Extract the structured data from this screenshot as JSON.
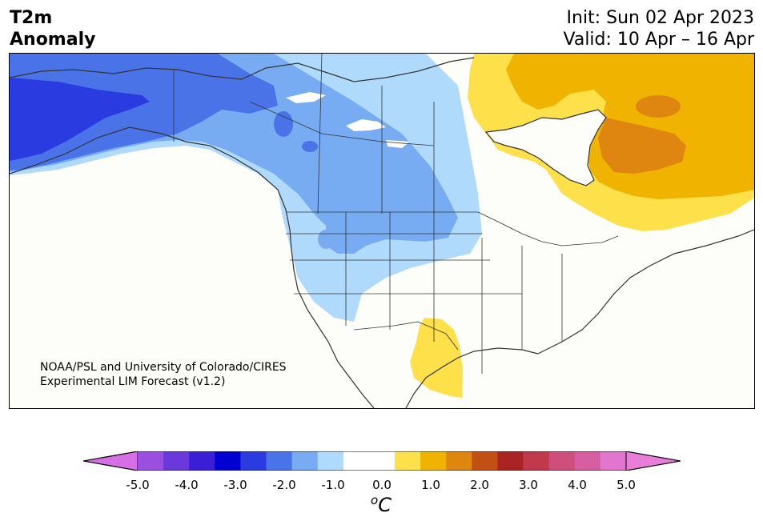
{
  "header": {
    "title_line1": "T2m",
    "title_line2": "Anomaly",
    "init": "Init: Sun 02 Apr 2023",
    "valid": "Valid: 10 Apr – 16 Apr"
  },
  "credit": {
    "line1": "NOAA/PSL and University of Colorado/CIRES",
    "line2": "Experimental LIM Forecast (v1.2)"
  },
  "colorbar": {
    "unit_o": "o",
    "unit_c": "C",
    "tick_labels": [
      "-5.0",
      "-4.0",
      "-3.0",
      "-2.0",
      "-1.0",
      "0.0",
      "1.0",
      "2.0",
      "3.0",
      "4.0",
      "5.0"
    ],
    "colors": {
      "under": "#d66ee6",
      "bins": [
        "#9b4fe0",
        "#6a38dc",
        "#3a1fd6",
        "#0000d2",
        "#2a3ce0",
        "#4b73e8",
        "#78acf2",
        "#b0dafc",
        "#ffffff",
        "#ffffff",
        "#fde04a",
        "#f0b400",
        "#de8610",
        "#c24f14",
        "#ac2323",
        "#c2384d",
        "#cf4e7c",
        "#d85ea2",
        "#e276cf"
      ],
      "over": "#e87ed8"
    }
  },
  "map": {
    "fill_colors": {
      "cold_strong": "#2a3ce0",
      "cold_med": "#4b73e8",
      "cold_mild": "#78acf2",
      "cool": "#b0dafc",
      "neutral": "#fdfdf9",
      "warm": "#fde04a",
      "warm_med": "#f0b400",
      "warm_strong": "#de8610"
    }
  }
}
